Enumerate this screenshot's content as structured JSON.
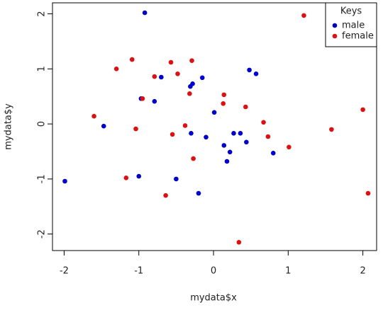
{
  "chart_data": {
    "type": "scatter",
    "x_label": "mydata$x",
    "y_label": "mydata$y",
    "xlim": [
      -2.156,
      2.184
    ],
    "ylim": [
      -2.3,
      2.2
    ],
    "xticks": [
      -2,
      -1,
      0,
      1,
      2
    ],
    "yticks": [
      -2,
      -1,
      0,
      1,
      2
    ],
    "legend_title": "Keys",
    "legend_position": "top-right",
    "series": [
      {
        "name": "male",
        "color": "#0000cc",
        "x": [
          -0.92,
          -0.31,
          -0.28,
          -0.7,
          -0.15,
          -0.97,
          -0.79,
          0.48,
          0.57,
          0.01,
          -1.47,
          -0.1,
          0.14,
          0.27,
          0.36,
          0.44,
          0.22,
          0.18,
          0.8,
          -1.99,
          -1.0,
          -0.5,
          -0.2,
          -0.3
        ],
        "y": [
          2.02,
          0.68,
          0.73,
          0.85,
          0.84,
          0.46,
          0.41,
          0.98,
          0.91,
          0.21,
          -0.04,
          -0.24,
          -0.39,
          -0.17,
          -0.17,
          -0.33,
          -0.51,
          -0.68,
          -0.53,
          -1.04,
          -0.95,
          -1.0,
          -1.26,
          -0.17
        ]
      },
      {
        "name": "female",
        "color": "#dd1111",
        "x": [
          1.21,
          -1.09,
          -0.57,
          -0.29,
          -1.3,
          -0.79,
          -0.48,
          -0.95,
          -0.32,
          0.13,
          0.14,
          0.43,
          -1.6,
          -1.04,
          -0.38,
          -0.55,
          0.67,
          0.73,
          1.58,
          2.0,
          1.01,
          -1.17,
          -0.27,
          -0.64,
          0.34,
          2.07
        ],
        "y": [
          1.97,
          1.17,
          1.12,
          1.15,
          1.0,
          0.86,
          0.91,
          0.46,
          0.55,
          0.37,
          0.53,
          0.31,
          0.14,
          -0.09,
          -0.03,
          -0.19,
          0.03,
          -0.23,
          -0.1,
          0.26,
          -0.42,
          -0.98,
          -0.63,
          -1.3,
          -2.15,
          -1.26
        ]
      }
    ]
  }
}
